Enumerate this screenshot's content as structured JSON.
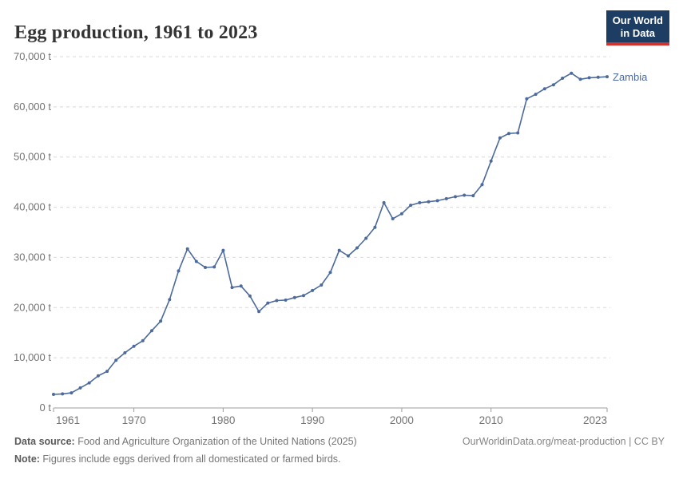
{
  "header": {
    "title": "Egg production, 1961 to 2023",
    "logo": {
      "line1": "Our World",
      "line2": "in Data"
    }
  },
  "footer": {
    "source_label": "Data source:",
    "source_text": " Food and Agriculture Organization of the United Nations (2025)",
    "note_label": "Note:",
    "note_text": " Figures include eggs derived from all domesticated or farmed birds.",
    "rights": "OurWorldinData.org/meat-production | CC BY"
  },
  "colors": {
    "line": "#4c6a9c",
    "entity_label": "#4c6a9c",
    "grid": "#d9d9d9",
    "axis": "#9e9e9e",
    "tick_label": "#737373",
    "logo_bg": "#1d3d63",
    "logo_stripe": "#d0342c",
    "title_text": "#333333"
  },
  "chart_data": {
    "type": "line",
    "title": "Egg production, 1961 to 2023",
    "entity": "Zambia",
    "unit": "t",
    "grid": "horizontal-dashed",
    "legend_position": "end-of-line-label",
    "ylim": [
      0,
      70000
    ],
    "yticks": [
      0,
      10000,
      20000,
      30000,
      40000,
      50000,
      60000,
      70000
    ],
    "ytick_labels": [
      "0 t",
      "10,000 t",
      "20,000 t",
      "30,000 t",
      "40,000 t",
      "50,000 t",
      "60,000 t",
      "70,000 t"
    ],
    "xticks": [
      1961,
      1970,
      1980,
      1990,
      2000,
      2010,
      2023
    ],
    "xtick_labels": [
      "1961",
      "1970",
      "1980",
      "1990",
      "2000",
      "2010",
      "2023"
    ],
    "x": [
      1961,
      1962,
      1963,
      1964,
      1965,
      1966,
      1967,
      1968,
      1969,
      1970,
      1971,
      1972,
      1973,
      1974,
      1975,
      1976,
      1977,
      1978,
      1979,
      1980,
      1981,
      1982,
      1983,
      1984,
      1985,
      1986,
      1987,
      1988,
      1989,
      1990,
      1991,
      1992,
      1993,
      1994,
      1995,
      1996,
      1997,
      1998,
      1999,
      2000,
      2001,
      2002,
      2003,
      2004,
      2005,
      2006,
      2007,
      2008,
      2009,
      2010,
      2011,
      2012,
      2013,
      2014,
      2015,
      2016,
      2017,
      2018,
      2019,
      2020,
      2021,
      2022,
      2023
    ],
    "values": [
      2700,
      2800,
      3000,
      4000,
      5000,
      6400,
      7300,
      9500,
      11000,
      12300,
      13400,
      15400,
      17300,
      21600,
      27300,
      31700,
      29200,
      28000,
      28100,
      31400,
      24000,
      24300,
      22300,
      19200,
      20900,
      21400,
      21500,
      22000,
      22400,
      23400,
      24500,
      27000,
      31400,
      30300,
      31900,
      33800,
      36000,
      40900,
      37700,
      38700,
      40400,
      40900,
      41100,
      41300,
      41700,
      42100,
      42400,
      42300,
      44500,
      49200,
      53800,
      54700,
      54800,
      61600,
      62500,
      63600,
      64400,
      65700,
      66700,
      65500,
      65800,
      65900,
      66000
    ]
  }
}
